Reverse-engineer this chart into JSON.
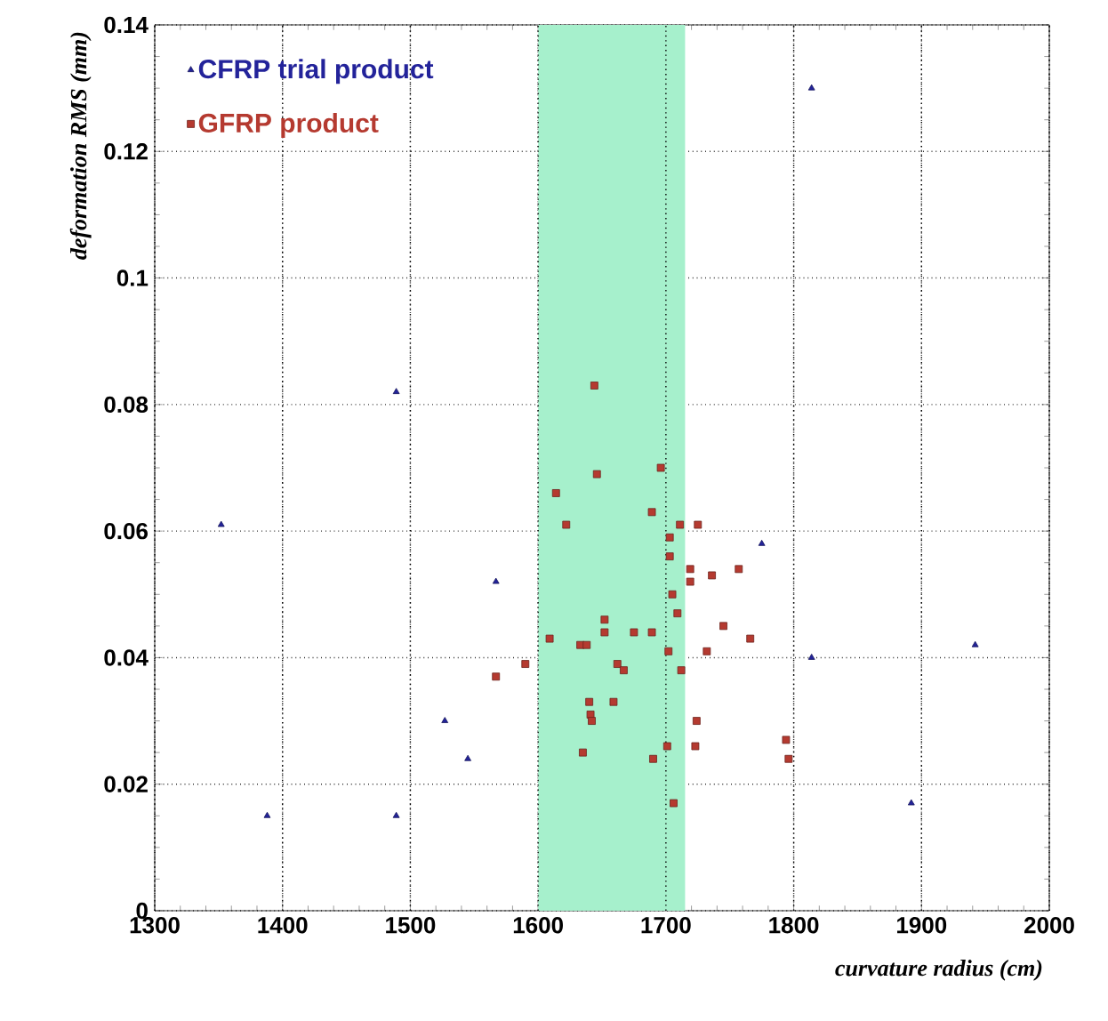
{
  "chart_data": {
    "type": "scatter",
    "xlabel": "curvature radius (cm)",
    "ylabel": "deformation RMS (mm)",
    "xlim": [
      1300,
      2000
    ],
    "xticks": [
      1300,
      1400,
      1500,
      1600,
      1700,
      1800,
      1900,
      2000
    ],
    "ylim": [
      0,
      0.14
    ],
    "yticks": [
      0,
      0.02,
      0.04,
      0.06,
      0.08,
      0.1,
      0.12,
      0.14
    ],
    "grid": true,
    "legend": "top left",
    "bands": [
      {
        "axis": "x",
        "from": 1600,
        "to": 1715,
        "color": "#a6f0cc"
      }
    ],
    "series": [
      {
        "name": "CFRP trial product",
        "color": "#23239a",
        "marker": "triangle",
        "x": [
          1352,
          1388,
          1489,
          1489,
          1527,
          1545,
          1567,
          1775,
          1814,
          1814,
          1892,
          1942
        ],
        "values": [
          0.061,
          0.015,
          0.082,
          0.015,
          0.03,
          0.024,
          0.052,
          0.058,
          0.13,
          0.04,
          0.017,
          0.042
        ]
      },
      {
        "name": "GFRP product",
        "color": "#b53a30",
        "marker": "square",
        "x": [
          1567,
          1590,
          1609,
          1614,
          1622,
          1633,
          1638,
          1635,
          1640,
          1641,
          1642,
          1644,
          1646,
          1652,
          1652,
          1659,
          1662,
          1667,
          1675,
          1689,
          1689,
          1690,
          1696,
          1701,
          1702,
          1703,
          1703,
          1705,
          1706,
          1709,
          1711,
          1712,
          1719,
          1719,
          1725,
          1724,
          1723,
          1732,
          1736,
          1745,
          1757,
          1766,
          1794,
          1796
        ],
        "values": [
          0.037,
          0.039,
          0.043,
          0.066,
          0.061,
          0.042,
          0.042,
          0.025,
          0.033,
          0.031,
          0.03,
          0.083,
          0.069,
          0.046,
          0.044,
          0.033,
          0.039,
          0.038,
          0.044,
          0.044,
          0.063,
          0.024,
          0.07,
          0.026,
          0.041,
          0.059,
          0.056,
          0.05,
          0.017,
          0.047,
          0.061,
          0.038,
          0.054,
          0.052,
          0.061,
          0.03,
          0.026,
          0.041,
          0.053,
          0.045,
          0.054,
          0.043,
          0.027,
          0.024
        ]
      }
    ]
  }
}
